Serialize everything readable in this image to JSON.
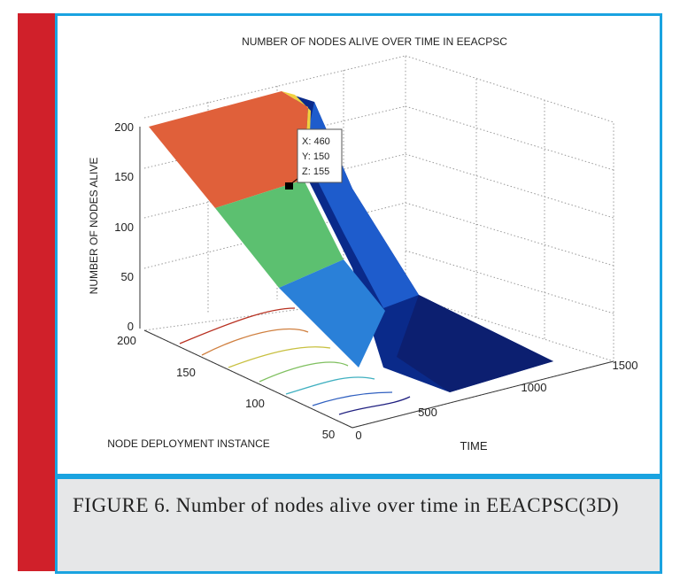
{
  "figure": {
    "title": "NUMBER OF NODES ALIVE OVER TIME IN EEACPSC",
    "z_axis_label": "NUMBER OF NODES ALIVE",
    "y_axis_label": "NODE DEPLOYMENT INSTANCE",
    "x_axis_label": "TIME",
    "z_ticks": [
      0,
      50,
      100,
      150,
      200
    ],
    "y_ticks": [
      50,
      100,
      150,
      200
    ],
    "x_ticks": [
      0,
      500,
      1000,
      1500
    ],
    "datatip": [
      "X: 460",
      "Y: 150",
      "Z: 155"
    ]
  },
  "caption": "FIGURE 6. Number of nodes alive over time in EEACPSC(3D)"
}
